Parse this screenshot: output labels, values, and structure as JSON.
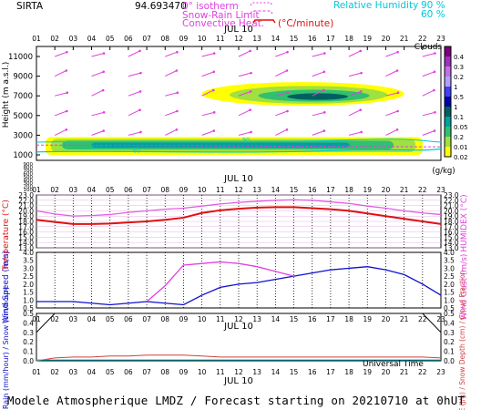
{
  "header": {
    "site": "SIRTA",
    "coords": "94.693470",
    "legend_isotherm": "0° isotherm",
    "legend_snow": "Snow-Rain Limit",
    "legend_conv": "Convective Heat.",
    "legend_conv_unit": "(°C/minute)",
    "legend_rh": "Relative Humidity",
    "rh_90": "90 %",
    "rh_60": "60 %"
  },
  "hours": [
    "01",
    "02",
    "03",
    "04",
    "05",
    "06",
    "07",
    "08",
    "09",
    "10",
    "11",
    "12",
    "13",
    "14",
    "15",
    "16",
    "17",
    "18",
    "19",
    "20",
    "21",
    "22",
    "23"
  ],
  "date_label": "JUL 10",
  "footer": {
    "universal_time": "Universal Time",
    "model_line": "Modele Atmospherique LMDZ / Forecast starting on 20210710 at 0hUT"
  },
  "colors": {
    "temperature": "#e01010",
    "humidex": "#e060e0",
    "wind_speed": "#1010d0",
    "wind_gust": "#e040e0",
    "wind_arrows": "#e040e0",
    "isotherm": "#e040e0",
    "rh": "#00c8d8",
    "rain": "#d04040"
  },
  "chart_data": [
    {
      "type": "heatmap",
      "panel": "clouds",
      "ylabel": "Height (m a.s.l.)",
      "y_ticks": [
        11000,
        9000,
        7000,
        5000,
        3000,
        1000
      ],
      "colorbar_title": "Clouds",
      "colorbar_unit": "(g/kg)",
      "colorbar_levels": [
        "0.4",
        "0.3",
        "0.2",
        "1",
        "0.5",
        "1",
        "0.1",
        "0.05",
        "0.2",
        "0.01",
        "0.02"
      ],
      "colorbar_colors": [
        "#7a007a",
        "#a030c0",
        "#c070e0",
        "#b0a0ff",
        "#4040ff",
        "#0000aa",
        "#006060",
        "#00a0a0",
        "#30c070",
        "#a0e040",
        "#ffff00"
      ],
      "features": [
        {
          "name": "upper cloud",
          "x_range": [
            10,
            21
          ],
          "height_range": [
            6000,
            8400
          ]
        },
        {
          "name": "low cloud",
          "x_range": [
            1,
            23
          ],
          "height_range": [
            1000,
            2800
          ]
        }
      ],
      "isotherm_height_m": 2000,
      "rh_labels": [
        "60",
        "90"
      ]
    },
    {
      "type": "line",
      "panel": "temperature",
      "ylabel_left": "Temperature (°C)",
      "ylabel_right": "HUMIDEX (°C)",
      "x": [
        1,
        2,
        3,
        4,
        5,
        6,
        7,
        8,
        9,
        10,
        11,
        12,
        13,
        14,
        15,
        16,
        17,
        18,
        19,
        20,
        21,
        22,
        23
      ],
      "y_ticks": [
        23,
        21.5,
        20,
        18.5,
        17,
        15.5,
        14,
        12.5,
        11
      ],
      "y_ticklabels": [
        "23.0",
        "22.0",
        "21.0",
        "20.0",
        "19.0",
        "18.0",
        "17.0",
        "16.0",
        "15.0",
        "14.0",
        "13.0"
      ],
      "series": [
        {
          "name": "Temperature",
          "values": [
            18.3,
            17.9,
            17.5,
            17.5,
            17.6,
            17.8,
            18.0,
            18.3,
            18.7,
            19.6,
            20.1,
            20.4,
            20.6,
            20.7,
            20.7,
            20.5,
            20.3,
            20.0,
            19.5,
            19.0,
            18.5,
            18.0,
            17.5
          ]
        },
        {
          "name": "HUMIDEX",
          "values": [
            20.0,
            19.4,
            19.0,
            19.1,
            19.3,
            19.7,
            20.0,
            20.3,
            20.5,
            20.9,
            21.3,
            21.6,
            21.8,
            22.0,
            22.1,
            22.0,
            21.7,
            21.4,
            20.9,
            20.5,
            20.0,
            19.6,
            19.3
          ]
        }
      ]
    },
    {
      "type": "line",
      "panel": "wind",
      "ylabel_left": "Wind Speed (m/s)",
      "ylabel_right": "Wind Gust (m/s)",
      "x": [
        1,
        2,
        3,
        4,
        5,
        6,
        7,
        8,
        9,
        10,
        11,
        12,
        13,
        14,
        15,
        16,
        17,
        18,
        19,
        20,
        21,
        22,
        23
      ],
      "ylim": [
        0.5,
        4.0
      ],
      "y_ticks": [
        "0.5",
        "1.0",
        "1.5",
        "2.0",
        "2.5",
        "3.0",
        "3.5",
        "4.0"
      ],
      "series": [
        {
          "name": "Wind Speed",
          "values": [
            0.9,
            0.9,
            0.9,
            0.8,
            0.7,
            0.8,
            0.9,
            0.8,
            0.7,
            1.3,
            1.8,
            2.0,
            2.1,
            2.3,
            2.5,
            2.7,
            2.9,
            3.0,
            3.1,
            2.9,
            2.6,
            2.0,
            1.3
          ]
        },
        {
          "name": "Wind Gust",
          "values": [
            null,
            null,
            null,
            null,
            null,
            null,
            0.9,
            1.9,
            3.2,
            3.3,
            3.4,
            3.3,
            3.1,
            2.8,
            2.5,
            null,
            null,
            null,
            null,
            null,
            null,
            null,
            null
          ]
        }
      ]
    },
    {
      "type": "line",
      "panel": "precip",
      "ylabel_left": "Rain (mm/hour) / Snow (cm/hour)",
      "ylabel_right": "CAPE (J/g) / Snow Depth (cm) / Cloud Fraction",
      "x": [
        1,
        2,
        3,
        4,
        5,
        6,
        7,
        8,
        9,
        10,
        11,
        12,
        13,
        14,
        15,
        16,
        17,
        18,
        19,
        20,
        21,
        22,
        23
      ],
      "y_ticks": [
        "0.5",
        "0.4",
        "0.3",
        "0.2",
        "0.1",
        "0.0"
      ],
      "series": [
        {
          "name": "Cloud Fraction",
          "values": [
            0.3,
            0.5,
            0.5,
            0.5,
            0.5,
            0.5,
            0.5,
            0.5,
            0.5,
            0.5,
            0.5,
            0.5,
            0.5,
            0.5,
            0.5,
            0.5,
            0.5,
            0.5,
            0.5,
            0.5,
            0.5,
            0.5,
            0.3
          ]
        },
        {
          "name": "CAPE",
          "values": [
            0.0,
            0.03,
            0.04,
            0.04,
            0.05,
            0.05,
            0.06,
            0.06,
            0.06,
            0.05,
            0.04,
            0.04,
            0.04,
            0.04,
            0.04,
            0.04,
            0.04,
            0.04,
            0.04,
            0.04,
            0.04,
            0.04,
            0.03
          ]
        }
      ]
    }
  ]
}
